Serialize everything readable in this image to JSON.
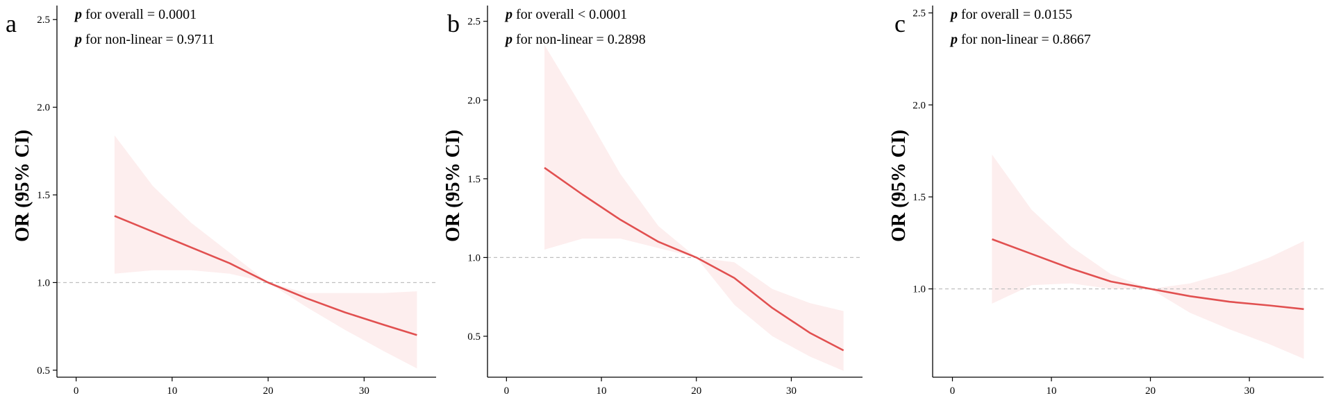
{
  "figure": {
    "panels": [
      "a",
      "b",
      "c"
    ]
  },
  "colors": {
    "curve": "#e15050",
    "ci_band": "#fdeeee",
    "reference_line": "#bfbfbf",
    "axis": "#000000",
    "text": "#000000"
  },
  "chart_data": [
    {
      "panel_label": "a",
      "type": "line",
      "stats": {
        "overall_p": "p",
        "overall_text": " for overall = 0.0001",
        "nonlinear_p": "p",
        "nonlinear_text": " for non-linear = 0.9711"
      },
      "xlabel": "",
      "ylabel": "OR (95% CI)",
      "xlim": [
        -2,
        37.5
      ],
      "ylim": [
        0.46,
        2.58
      ],
      "xticks": [
        0,
        10,
        20,
        30
      ],
      "yticks": [
        0.5,
        1.0,
        1.5,
        2.0,
        2.5
      ],
      "ytick_labels": [
        "0.5",
        "1.0",
        "1.5",
        "2.0",
        "2.5"
      ],
      "reference_y": 1.0,
      "series": [
        {
          "x": [
            4,
            8,
            12,
            16,
            20,
            24,
            28,
            32,
            35.5
          ],
          "y": [
            1.38,
            1.29,
            1.2,
            1.11,
            1.0,
            0.91,
            0.83,
            0.76,
            0.7
          ],
          "lower": [
            1.05,
            1.07,
            1.07,
            1.05,
            1.0,
            0.86,
            0.73,
            0.61,
            0.51
          ],
          "upper": [
            1.84,
            1.55,
            1.34,
            1.17,
            1.0,
            0.94,
            0.94,
            0.94,
            0.95
          ]
        }
      ]
    },
    {
      "panel_label": "b",
      "type": "line",
      "stats": {
        "overall_p": "p",
        "overall_text": " for overall < 0.0001",
        "nonlinear_p": "p",
        "nonlinear_text": " for non-linear = 0.2898"
      },
      "xlabel": "",
      "ylabel": "OR (95% CI)",
      "xlim": [
        -2,
        37.5
      ],
      "ylim": [
        0.24,
        2.6
      ],
      "xticks": [
        0,
        10,
        20,
        30
      ],
      "yticks": [
        0.5,
        1.0,
        1.5,
        2.0,
        2.5
      ],
      "ytick_labels": [
        "0.5",
        "1.0",
        "1.5",
        "2.0",
        "2.5"
      ],
      "reference_y": 1.0,
      "series": [
        {
          "x": [
            4,
            8,
            12,
            16,
            20,
            24,
            28,
            32,
            35.5
          ],
          "y": [
            1.57,
            1.4,
            1.24,
            1.1,
            1.0,
            0.87,
            0.68,
            0.52,
            0.41
          ],
          "lower": [
            1.05,
            1.12,
            1.12,
            1.06,
            1.0,
            0.7,
            0.5,
            0.37,
            0.28
          ],
          "upper": [
            2.35,
            1.95,
            1.53,
            1.2,
            1.0,
            0.97,
            0.8,
            0.71,
            0.66
          ]
        }
      ]
    },
    {
      "panel_label": "c",
      "type": "line",
      "stats": {
        "overall_p": "p",
        "overall_text": " for overall = 0.0155",
        "nonlinear_p": "p",
        "nonlinear_text": " for non-linear = 0.8667"
      },
      "xlabel": "",
      "ylabel": "OR (95% CI)",
      "xlim": [
        -2,
        37.5
      ],
      "ylim": [
        0.52,
        2.54
      ],
      "xticks": [
        0,
        10,
        20,
        30
      ],
      "yticks": [
        1.0,
        1.5,
        2.0,
        2.5
      ],
      "ytick_labels": [
        "1.0",
        "1.5",
        "2.0",
        "2.5"
      ],
      "reference_y": 1.0,
      "series": [
        {
          "x": [
            4,
            8,
            12,
            16,
            20,
            24,
            28,
            32,
            35.5
          ],
          "y": [
            1.27,
            1.19,
            1.11,
            1.04,
            1.0,
            0.96,
            0.93,
            0.91,
            0.89
          ],
          "lower": [
            0.92,
            1.02,
            1.03,
            1.0,
            1.0,
            0.87,
            0.78,
            0.7,
            0.62
          ],
          "upper": [
            1.73,
            1.43,
            1.23,
            1.08,
            1.0,
            1.03,
            1.09,
            1.17,
            1.26
          ]
        }
      ]
    }
  ]
}
